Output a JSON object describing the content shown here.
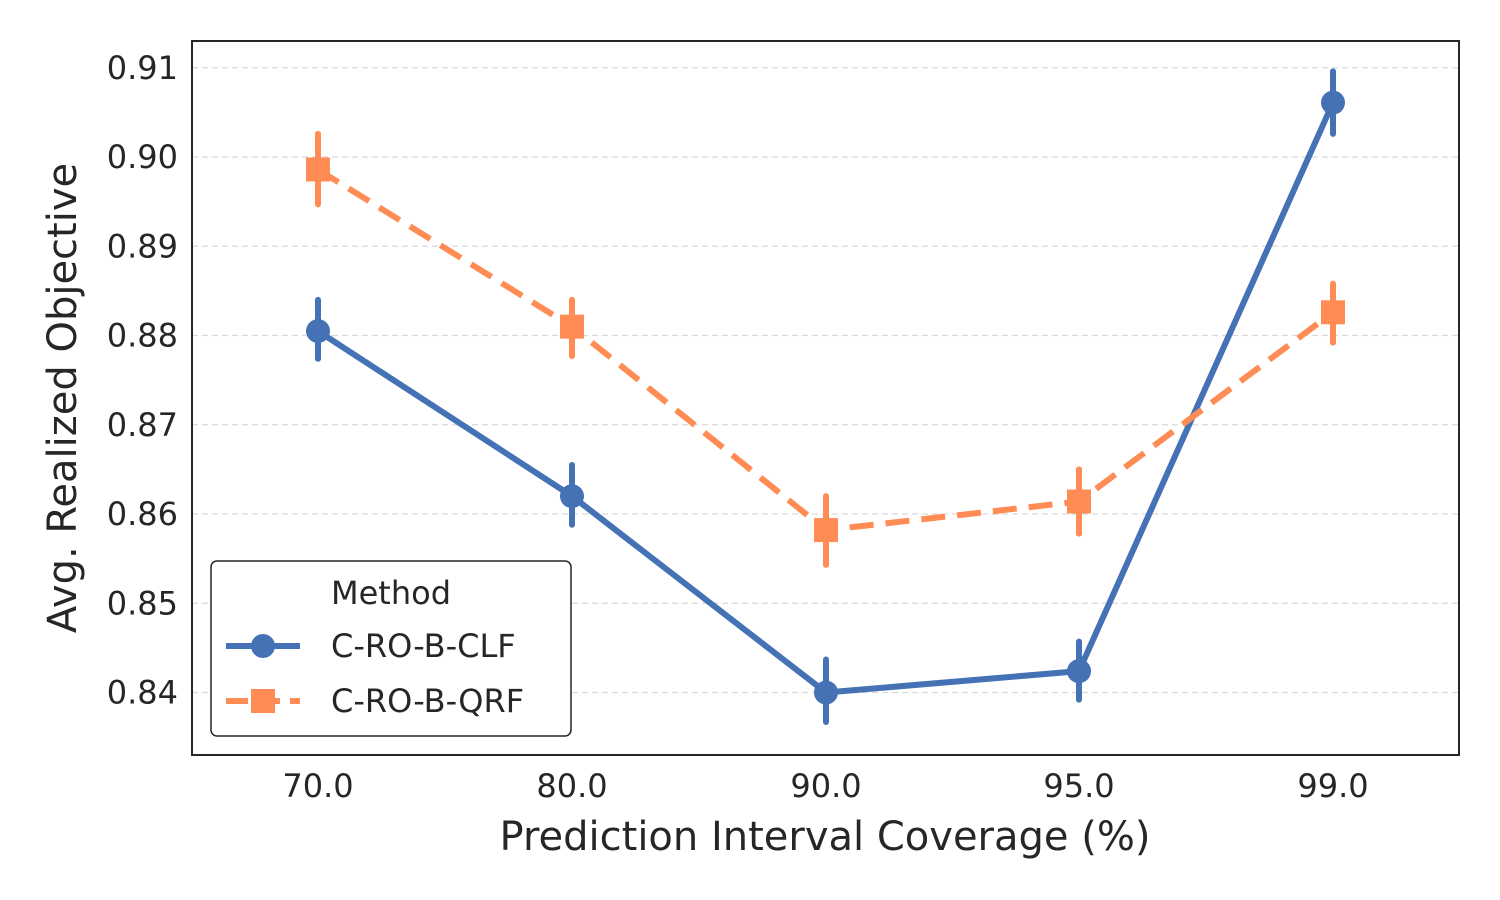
{
  "chart_data": {
    "type": "line",
    "title": "",
    "xlabel": "Prediction Interval Coverage (%)",
    "ylabel": "Avg. Realized Objective",
    "categories": [
      "70.0",
      "80.0",
      "90.0",
      "95.0",
      "99.0"
    ],
    "ylim": [
      0.833,
      0.913
    ],
    "yticks": [
      0.84,
      0.85,
      0.86,
      0.87,
      0.88,
      0.89,
      0.9,
      0.91
    ],
    "ytick_labels": [
      "0.84",
      "0.85",
      "0.86",
      "0.87",
      "0.88",
      "0.89",
      "0.90",
      "0.91"
    ],
    "grid": "horizontal-dashed",
    "legend": {
      "title": "Method",
      "placement": "lower-left"
    },
    "series": [
      {
        "name": "C-RO-B-CLF",
        "color": "#4472b4",
        "marker": "circle",
        "linestyle": "solid",
        "values": [
          0.8805,
          0.862,
          0.84,
          0.8424,
          0.9061
        ],
        "err_low": [
          0.8774,
          0.8588,
          0.8367,
          0.8392,
          0.9026
        ],
        "err_high": [
          0.884,
          0.8655,
          0.8437,
          0.8457,
          0.9096
        ]
      },
      {
        "name": "C-RO-B-QRF",
        "color": "#ff8c54",
        "marker": "square",
        "linestyle": "dashed",
        "values": [
          0.8986,
          0.881,
          0.8582,
          0.8614,
          0.8826
        ],
        "err_low": [
          0.8947,
          0.8777,
          0.8543,
          0.8578,
          0.8792
        ],
        "err_high": [
          0.9026,
          0.884,
          0.862,
          0.865,
          0.8858
        ]
      }
    ]
  }
}
